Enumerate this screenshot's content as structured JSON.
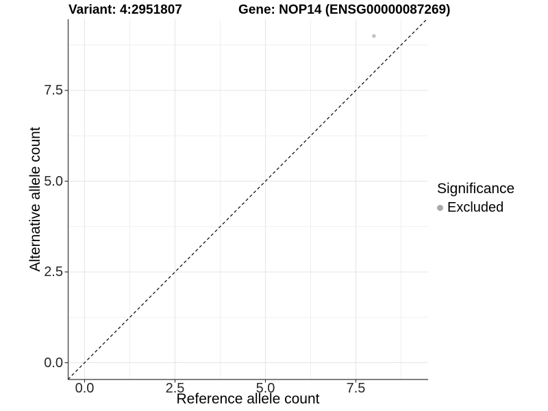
{
  "header": {
    "variant_title": "Variant: 4:2951807",
    "gene_title": "Gene: NOP14 (ENSG00000087269)"
  },
  "axes": {
    "x_label": "Reference allele count",
    "y_label": "Alternative allele count"
  },
  "legend": {
    "title": "Significance",
    "items": [
      {
        "label": "Excluded",
        "color": "#a9a9a9"
      }
    ]
  },
  "chart_data": {
    "type": "scatter",
    "title_left": "Variant: 4:2951807",
    "title_right": "Gene: NOP14 (ENSG00000087269)",
    "xlabel": "Reference allele count",
    "ylabel": "Alternative allele count",
    "xlim": [
      -0.46,
      9.5
    ],
    "ylim": [
      -0.46,
      9.46
    ],
    "x_ticks": [
      0.0,
      2.5,
      5.0,
      7.5
    ],
    "y_ticks": [
      0.0,
      2.5,
      5.0,
      7.5
    ],
    "x_tick_labels": [
      "0.0",
      "2.5",
      "5.0",
      "7.5"
    ],
    "y_tick_labels": [
      "0.0",
      "2.5",
      "5.0",
      "7.5"
    ],
    "minor_ticks": [
      1.25,
      3.75,
      6.25,
      8.75
    ],
    "grid": "major+minor",
    "series": [
      {
        "name": "Excluded",
        "color": "#c3c3c3",
        "points": [
          {
            "x": 8,
            "y": 9
          }
        ]
      }
    ],
    "identity_line": {
      "equation": "y = x",
      "style": "dashed",
      "color": "#000000"
    },
    "legend_position": "right",
    "colors": {
      "grid_major": "#e4e4e4",
      "grid_minor": "#efefef",
      "axis_line": "#333333",
      "tick_mark": "#333333",
      "point": "#c3c3c3",
      "legend_key": "#a9a9a9"
    }
  }
}
